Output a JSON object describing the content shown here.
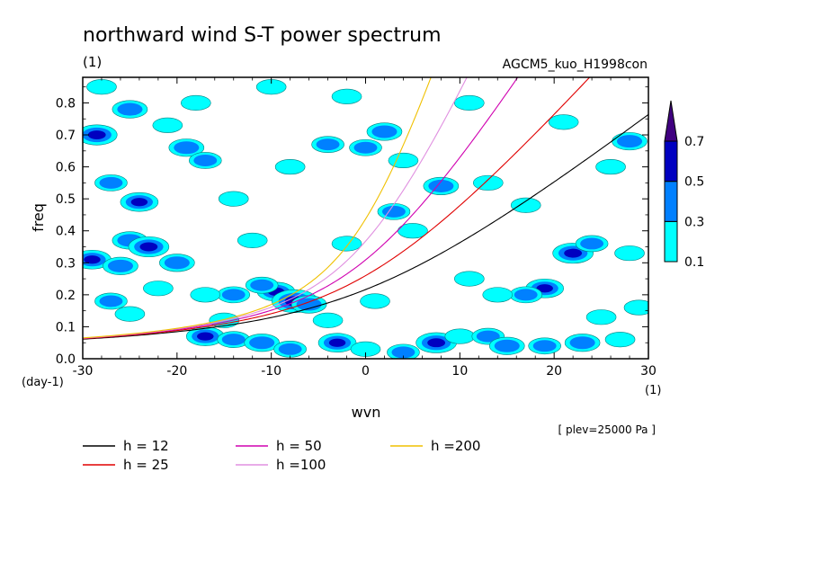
{
  "title": "northward wind S-T power spectrum",
  "unit_label": "(1)",
  "model_label": "AGCM5_kuo_H1998con",
  "level_label": "[ plev=25000 Pa ]",
  "chart_data": {
    "type": "heatmap",
    "title": "northward wind S-T power spectrum",
    "xlabel": "wvn",
    "ylabel": "freq",
    "x_unit": "(1)",
    "y_unit": "(day-1)",
    "xlim": [
      -30,
      30
    ],
    "ylim": [
      0,
      0.88
    ],
    "x_ticks": [
      -30,
      -20,
      -10,
      0,
      10,
      20,
      30
    ],
    "x_tick_labels": [
      "-30",
      "-20",
      "-10",
      "0",
      "10",
      "20",
      "30"
    ],
    "y_ticks": [
      0.0,
      0.1,
      0.2,
      0.3,
      0.4,
      0.5,
      0.6,
      0.7,
      0.8
    ],
    "y_tick_labels": [
      "0.0",
      "0.1",
      "0.2",
      "0.3",
      "0.4",
      "0.5",
      "0.6",
      "0.7",
      "0.8"
    ],
    "colorbar": {
      "levels": [
        0.1,
        0.3,
        0.5,
        0.7
      ],
      "labels": [
        "0.1",
        "0.3",
        "0.5",
        "0.7"
      ],
      "colors": [
        "#00ffff",
        "#0080ff",
        "#0000c0",
        "#400080"
      ]
    },
    "dispersion_curves": [
      {
        "name": "h = 12",
        "h": 12,
        "color": "#000000"
      },
      {
        "name": "h = 25",
        "h": 25,
        "color": "#e00000"
      },
      {
        "name": "h = 50",
        "h": 50,
        "color": "#d000b0"
      },
      {
        "name": "h =100",
        "h": 100,
        "color": "#e090e0"
      },
      {
        "name": "h =200",
        "h": 200,
        "color": "#f0c000"
      }
    ],
    "blobs": [
      {
        "x": -28.5,
        "y": 0.7,
        "v": 0.6
      },
      {
        "x": -25,
        "y": 0.78,
        "v": 0.4
      },
      {
        "x": -27,
        "y": 0.55,
        "v": 0.3
      },
      {
        "x": -24,
        "y": 0.49,
        "v": 0.5
      },
      {
        "x": -25,
        "y": 0.37,
        "v": 0.4
      },
      {
        "x": -23,
        "y": 0.35,
        "v": 0.6
      },
      {
        "x": -29,
        "y": 0.31,
        "v": 0.5
      },
      {
        "x": -26,
        "y": 0.29,
        "v": 0.4
      },
      {
        "x": -20,
        "y": 0.3,
        "v": 0.4
      },
      {
        "x": -19,
        "y": 0.66,
        "v": 0.4
      },
      {
        "x": -17,
        "y": 0.62,
        "v": 0.3
      },
      {
        "x": -18,
        "y": 0.8,
        "v": 0.2
      },
      {
        "x": -21,
        "y": 0.73,
        "v": 0.2
      },
      {
        "x": -14,
        "y": 0.5,
        "v": 0.2
      },
      {
        "x": -12,
        "y": 0.37,
        "v": 0.2
      },
      {
        "x": -9.5,
        "y": 0.21,
        "v": 0.5
      },
      {
        "x": -7.5,
        "y": 0.18,
        "v": 0.8
      },
      {
        "x": -6,
        "y": 0.17,
        "v": 0.4
      },
      {
        "x": -11,
        "y": 0.23,
        "v": 0.3
      },
      {
        "x": -14,
        "y": 0.2,
        "v": 0.3
      },
      {
        "x": -17,
        "y": 0.2,
        "v": 0.2
      },
      {
        "x": -22,
        "y": 0.22,
        "v": 0.2
      },
      {
        "x": -27,
        "y": 0.18,
        "v": 0.3
      },
      {
        "x": -25,
        "y": 0.14,
        "v": 0.2
      },
      {
        "x": -17,
        "y": 0.07,
        "v": 0.5
      },
      {
        "x": -14,
        "y": 0.06,
        "v": 0.3
      },
      {
        "x": -11,
        "y": 0.05,
        "v": 0.4
      },
      {
        "x": -8,
        "y": 0.03,
        "v": 0.3
      },
      {
        "x": -3,
        "y": 0.05,
        "v": 0.5
      },
      {
        "x": 0,
        "y": 0.03,
        "v": 0.2
      },
      {
        "x": 4,
        "y": 0.02,
        "v": 0.3
      },
      {
        "x": 7.5,
        "y": 0.05,
        "v": 0.6
      },
      {
        "x": 10,
        "y": 0.07,
        "v": 0.2
      },
      {
        "x": 13,
        "y": 0.07,
        "v": 0.3
      },
      {
        "x": 15,
        "y": 0.04,
        "v": 0.4
      },
      {
        "x": 19,
        "y": 0.04,
        "v": 0.3
      },
      {
        "x": 23,
        "y": 0.05,
        "v": 0.4
      },
      {
        "x": 27,
        "y": 0.06,
        "v": 0.2
      },
      {
        "x": 19,
        "y": 0.22,
        "v": 0.5
      },
      {
        "x": 17,
        "y": 0.2,
        "v": 0.3
      },
      {
        "x": 22,
        "y": 0.33,
        "v": 0.6
      },
      {
        "x": 24,
        "y": 0.36,
        "v": 0.3
      },
      {
        "x": 28,
        "y": 0.33,
        "v": 0.2
      },
      {
        "x": 26,
        "y": 0.6,
        "v": 0.2
      },
      {
        "x": 28,
        "y": 0.68,
        "v": 0.4
      },
      {
        "x": 17,
        "y": 0.48,
        "v": 0.2
      },
      {
        "x": 13,
        "y": 0.55,
        "v": 0.2
      },
      {
        "x": 8,
        "y": 0.54,
        "v": 0.4
      },
      {
        "x": 4,
        "y": 0.62,
        "v": 0.2
      },
      {
        "x": 2,
        "y": 0.71,
        "v": 0.4
      },
      {
        "x": 0,
        "y": 0.66,
        "v": 0.3
      },
      {
        "x": -4,
        "y": 0.67,
        "v": 0.3
      },
      {
        "x": -8,
        "y": 0.6,
        "v": 0.2
      },
      {
        "x": -10,
        "y": 0.85,
        "v": 0.2
      },
      {
        "x": -2,
        "y": 0.82,
        "v": 0.2
      },
      {
        "x": 3,
        "y": 0.46,
        "v": 0.3
      },
      {
        "x": -2,
        "y": 0.36,
        "v": 0.2
      },
      {
        "x": 5,
        "y": 0.4,
        "v": 0.2
      },
      {
        "x": 11,
        "y": 0.8,
        "v": 0.2
      },
      {
        "x": 21,
        "y": 0.74,
        "v": 0.2
      },
      {
        "x": -28,
        "y": 0.85,
        "v": 0.2
      },
      {
        "x": -15,
        "y": 0.12,
        "v": 0.2
      },
      {
        "x": 11,
        "y": 0.25,
        "v": 0.2
      },
      {
        "x": 14,
        "y": 0.2,
        "v": 0.2
      },
      {
        "x": 25,
        "y": 0.13,
        "v": 0.2
      },
      {
        "x": 29,
        "y": 0.16,
        "v": 0.2
      },
      {
        "x": -4,
        "y": 0.12,
        "v": 0.2
      },
      {
        "x": 1,
        "y": 0.18,
        "v": 0.2
      }
    ]
  }
}
